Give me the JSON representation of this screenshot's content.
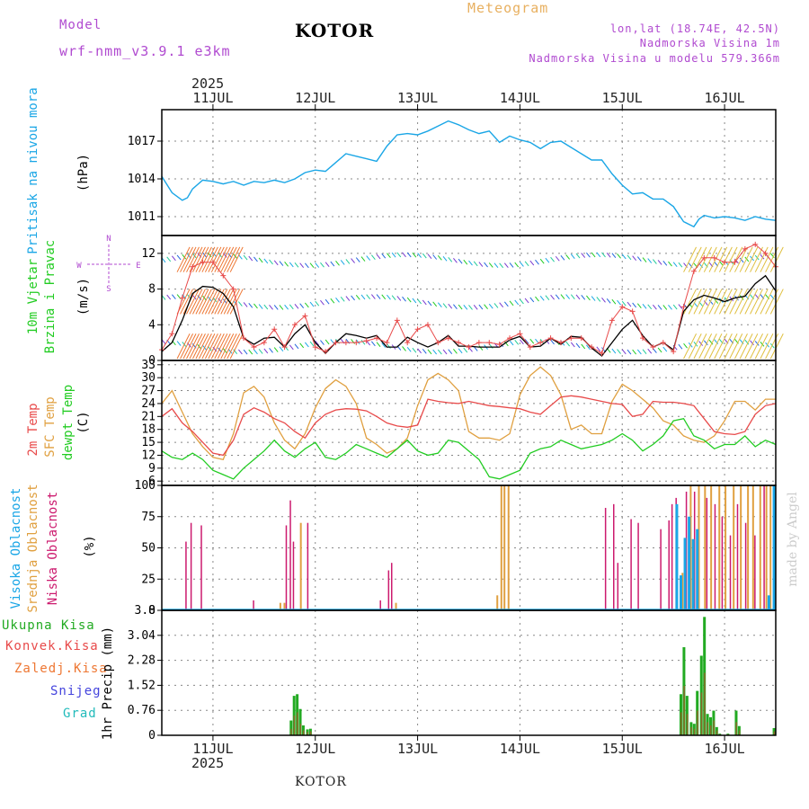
{
  "header": {
    "model_label": "Model",
    "model_name": "wrf-nmm_v3.9.1 e3km",
    "station": "KOTOR",
    "product": "Meteogram",
    "lonlat": "lon,lat (18.74E, 42.5N)",
    "elevation": "Nadmorska Visina 1m",
    "model_elevation": "Nadmorska Visina u modelu 579.366m",
    "year": "2025",
    "footer_station": "KOTOR",
    "watermark": "made by Angel"
  },
  "colors": {
    "pressure": "#1aa6e6",
    "temp2m": "#e84a4a",
    "sfc_temp": "#e0a040",
    "dewpt": "#22cc22",
    "wind_speed": "#000000",
    "gust": "#e84a4a",
    "high_cloud": "#1aa6e6",
    "mid_cloud": "#e0a040",
    "low_cloud": "#cc1a6e",
    "total_precip": "#22aa22",
    "conv_precip": "#e84a4a",
    "freezing": "#ee7733",
    "snow": "#4444dd",
    "hail": "#22bbbb",
    "header_purple": "#b04ad0",
    "header_orange": "#e8b060"
  },
  "chart_data": [
    {
      "type": "line",
      "panel": "pressure",
      "title": "Pritisak na nivou mora",
      "ylabel": "(hPa)",
      "ylim": [
        1009.5,
        1019.5
      ],
      "yticks": [
        "1011",
        "1014",
        "1017"
      ],
      "ytick_values": [
        1011,
        1014,
        1017
      ],
      "xlim": [
        10.5,
        16.5
      ],
      "x": [
        10.5,
        10.6,
        10.7,
        10.75,
        10.8,
        10.9,
        11.0,
        11.1,
        11.2,
        11.3,
        11.4,
        11.5,
        11.6,
        11.7,
        11.8,
        11.9,
        12.0,
        12.1,
        12.2,
        12.3,
        12.4,
        12.5,
        12.6,
        12.7,
        12.8,
        12.9,
        13.0,
        13.1,
        13.2,
        13.3,
        13.4,
        13.5,
        13.6,
        13.7,
        13.8,
        13.9,
        14.0,
        14.1,
        14.2,
        14.3,
        14.4,
        14.5,
        14.6,
        14.7,
        14.8,
        14.9,
        15.0,
        15.1,
        15.2,
        15.3,
        15.4,
        15.5,
        15.6,
        15.7,
        15.75,
        15.8,
        15.9,
        16.0,
        16.1,
        16.2,
        16.3,
        16.4,
        16.5
      ],
      "values": [
        1014.2,
        1012.9,
        1012.3,
        1012.5,
        1013.2,
        1013.9,
        1013.8,
        1013.6,
        1013.8,
        1013.5,
        1013.8,
        1013.7,
        1013.9,
        1013.7,
        1014.0,
        1014.5,
        1014.7,
        1014.6,
        1015.3,
        1016.0,
        1015.8,
        1015.6,
        1015.4,
        1016.6,
        1017.5,
        1017.6,
        1017.5,
        1017.8,
        1018.2,
        1018.6,
        1018.3,
        1017.9,
        1017.6,
        1017.8,
        1016.9,
        1017.4,
        1017.1,
        1016.9,
        1016.4,
        1016.9,
        1017.0,
        1016.5,
        1016.0,
        1015.5,
        1015.5,
        1014.4,
        1013.5,
        1012.8,
        1012.9,
        1012.4,
        1012.4,
        1011.8,
        1010.6,
        1010.2,
        1010.8,
        1011.1,
        1010.9,
        1011.0,
        1010.9,
        1010.7,
        1011.0,
        1010.8,
        1010.7
      ]
    },
    {
      "type": "line",
      "panel": "wind",
      "title": "10m Vjetar",
      "subtitle": "Brzina i Pravac",
      "ylabel": "(m/s)",
      "ylim": [
        0,
        14
      ],
      "yticks": [
        "0",
        "4",
        "8",
        "12"
      ],
      "ytick_values": [
        0,
        4,
        8,
        12
      ],
      "compass": [
        "N",
        "W",
        "E",
        "S"
      ],
      "series": [
        {
          "name": "10m wind speed",
          "x": [
            10.5,
            10.6,
            10.7,
            10.8,
            10.9,
            11.0,
            11.1,
            11.2,
            11.3,
            11.4,
            11.5,
            11.6,
            11.7,
            11.8,
            11.9,
            12.0,
            12.1,
            12.2,
            12.3,
            12.4,
            12.5,
            12.6,
            12.7,
            12.8,
            12.9,
            13.0,
            13.1,
            13.2,
            13.3,
            13.4,
            13.5,
            13.6,
            13.7,
            13.8,
            13.9,
            14.0,
            14.1,
            14.2,
            14.3,
            14.4,
            14.5,
            14.6,
            14.7,
            14.8,
            14.9,
            15.0,
            15.1,
            15.2,
            15.3,
            15.4,
            15.5,
            15.6,
            15.7,
            15.8,
            15.9,
            16.0,
            16.1,
            16.2,
            16.3,
            16.4,
            16.5
          ],
          "values": [
            1.0,
            2.0,
            4.5,
            7.5,
            8.3,
            8.2,
            7.5,
            6.0,
            2.5,
            1.8,
            2.5,
            2.6,
            1.5,
            3.0,
            4.0,
            2.0,
            0.8,
            2.0,
            3.0,
            2.8,
            2.5,
            2.8,
            1.5,
            1.5,
            2.6,
            2.0,
            1.5,
            2.0,
            2.8,
            1.6,
            1.6,
            1.5,
            1.5,
            1.5,
            2.3,
            2.7,
            1.5,
            1.6,
            2.5,
            1.8,
            2.7,
            2.6,
            1.4,
            0.5,
            2.0,
            3.5,
            4.5,
            2.8,
            1.5,
            2.0,
            1.2,
            5.5,
            6.8,
            7.3,
            7.0,
            6.6,
            7.0,
            7.2,
            8.6,
            9.5,
            7.8
          ]
        },
        {
          "name": "Gust",
          "x": [
            10.5,
            10.6,
            10.7,
            10.8,
            10.9,
            11.0,
            11.1,
            11.2,
            11.3,
            11.4,
            11.5,
            11.6,
            11.7,
            11.8,
            11.9,
            12.0,
            12.1,
            12.2,
            12.3,
            12.4,
            12.5,
            12.6,
            12.7,
            12.8,
            12.9,
            13.0,
            13.1,
            13.2,
            13.3,
            13.4,
            13.5,
            13.6,
            13.7,
            13.8,
            13.9,
            14.0,
            14.1,
            14.2,
            14.3,
            14.4,
            14.5,
            14.6,
            14.7,
            14.8,
            14.9,
            15.0,
            15.1,
            15.2,
            15.3,
            15.4,
            15.5,
            15.6,
            15.7,
            15.8,
            15.9,
            16.0,
            16.1,
            16.2,
            16.3,
            16.4,
            16.5
          ],
          "values": [
            1.2,
            3.0,
            7.0,
            10.5,
            11.0,
            11.0,
            9.5,
            8.0,
            2.5,
            1.5,
            2.0,
            3.5,
            1.5,
            4.0,
            5.0,
            1.5,
            1.0,
            2.0,
            2.0,
            2.0,
            2.2,
            2.5,
            2.0,
            4.5,
            2.0,
            3.5,
            4.0,
            2.0,
            2.5,
            2.0,
            1.5,
            2.0,
            2.0,
            1.8,
            2.5,
            3.0,
            1.5,
            2.0,
            2.5,
            2.0,
            2.5,
            2.5,
            1.5,
            0.8,
            4.5,
            6.0,
            5.5,
            2.5,
            1.5,
            2.0,
            1.0,
            6.0,
            10.0,
            11.5,
            11.5,
            11.0,
            11.0,
            12.5,
            13.0,
            12.0,
            10.5
          ]
        }
      ]
    },
    {
      "type": "line",
      "panel": "temperature",
      "title": "2m Temp",
      "subtitle": "SFC Temp",
      "subtitle2": "dewpt Temp",
      "ylabel": "(C)",
      "ylim": [
        5,
        34
      ],
      "yticks": [
        "6",
        "9",
        "12",
        "15",
        "18",
        "21",
        "24",
        "27",
        "30",
        "33"
      ],
      "ytick_values": [
        6,
        9,
        12,
        15,
        18,
        21,
        24,
        27,
        30,
        33
      ],
      "x": [
        10.5,
        10.6,
        10.7,
        10.8,
        10.9,
        11.0,
        11.1,
        11.2,
        11.3,
        11.4,
        11.5,
        11.6,
        11.7,
        11.8,
        11.9,
        12.0,
        12.1,
        12.2,
        12.3,
        12.4,
        12.5,
        12.6,
        12.7,
        12.8,
        12.9,
        13.0,
        13.1,
        13.2,
        13.3,
        13.4,
        13.5,
        13.6,
        13.7,
        13.8,
        13.9,
        14.0,
        14.1,
        14.2,
        14.3,
        14.4,
        14.5,
        14.6,
        14.7,
        14.8,
        14.9,
        15.0,
        15.1,
        15.2,
        15.3,
        15.4,
        15.5,
        15.6,
        15.7,
        15.8,
        15.9,
        16.0,
        16.1,
        16.2,
        16.3,
        16.4,
        16.5
      ],
      "series": [
        {
          "name": "2m Temp",
          "values": [
            21.0,
            22.8,
            19.5,
            17.5,
            15.0,
            12.5,
            12.0,
            15.5,
            21.5,
            23.0,
            22.0,
            20.5,
            19.5,
            17.5,
            16.0,
            19.5,
            21.5,
            22.5,
            22.8,
            22.7,
            22.3,
            21.0,
            19.5,
            18.8,
            18.5,
            19.0,
            25.0,
            24.5,
            24.2,
            24.0,
            24.5,
            24.0,
            23.5,
            23.3,
            23.0,
            22.8,
            22.0,
            21.5,
            23.5,
            25.5,
            25.8,
            25.5,
            25.0,
            24.5,
            24.0,
            23.8,
            21.0,
            21.5,
            24.5,
            24.3,
            24.3,
            24.0,
            23.5,
            20.5,
            17.5,
            17.0,
            16.8,
            17.5,
            21.5,
            23.5,
            24.0
          ]
        },
        {
          "name": "SFC Temp",
          "values": [
            24.0,
            27.0,
            22.0,
            17.0,
            14.0,
            11.5,
            11.0,
            17.0,
            26.5,
            28.0,
            25.5,
            19.5,
            15.5,
            13.5,
            17.0,
            23.0,
            27.5,
            29.5,
            28.0,
            24.0,
            16.0,
            14.5,
            12.5,
            13.5,
            16.0,
            23.5,
            29.5,
            31.0,
            29.5,
            27.0,
            17.5,
            16.0,
            16.0,
            15.5,
            17.0,
            26.0,
            30.5,
            32.5,
            30.5,
            26.0,
            18.0,
            19.0,
            17.0,
            17.0,
            24.5,
            28.5,
            27.0,
            25.0,
            23.0,
            20.0,
            19.0,
            16.5,
            15.5,
            15.0,
            16.5,
            20.0,
            24.5,
            24.5,
            22.5,
            25.0,
            25.0
          ]
        },
        {
          "name": "dewpt Temp",
          "values": [
            13.0,
            11.5,
            11.0,
            12.5,
            11.0,
            8.5,
            7.5,
            6.5,
            9.0,
            11.0,
            13.0,
            15.5,
            13.0,
            11.5,
            13.5,
            15.0,
            11.5,
            11.0,
            12.5,
            14.5,
            13.5,
            12.5,
            11.5,
            13.5,
            15.5,
            13.0,
            12.0,
            12.5,
            15.5,
            15.0,
            13.0,
            11.0,
            7.0,
            6.5,
            7.5,
            8.5,
            12.5,
            13.5,
            14.0,
            15.5,
            14.5,
            13.5,
            14.0,
            14.5,
            15.5,
            17.0,
            15.5,
            13.0,
            14.5,
            16.5,
            20.0,
            20.5,
            16.5,
            15.5,
            13.5,
            14.5,
            14.5,
            16.5,
            14.0,
            15.5,
            14.5
          ]
        }
      ]
    },
    {
      "type": "bar",
      "panel": "clouds",
      "title": "Visoka Oblacnost",
      "subtitle": "Srednja Oblacnost",
      "subtitle2": "Niska Oblacnost",
      "ylabel": "(%)",
      "ylim": [
        0,
        100
      ],
      "yticks": [
        "0",
        "25",
        "50",
        "75",
        "100"
      ],
      "ytick_values": [
        0,
        25,
        50,
        75,
        100
      ],
      "series": [
        {
          "name": "Niska Oblacnost",
          "x": [
            10.73,
            10.78,
            10.88,
            11.39,
            11.71,
            11.75,
            11.78,
            11.92,
            12.63,
            12.71,
            12.74,
            14.83,
            14.91,
            14.95,
            15.08,
            15.15,
            15.37,
            15.45,
            15.48,
            15.52,
            15.62,
            15.7,
            15.82,
            15.9,
            15.97,
            16.05,
            16.12,
            16.2,
            16.29,
            16.38
          ],
          "values": [
            55,
            70,
            68,
            8,
            68,
            88,
            55,
            70,
            8,
            32,
            38,
            82,
            85,
            38,
            73,
            70,
            65,
            72,
            85,
            90,
            95,
            95,
            90,
            85,
            75,
            60,
            85,
            70,
            60,
            100
          ]
        },
        {
          "name": "Srednja Oblacnost",
          "x": [
            11.65,
            11.69,
            11.85,
            12.78,
            13.77,
            13.81,
            13.84,
            13.88,
            15.58,
            15.66,
            15.74,
            15.8,
            15.86,
            15.94,
            16.0,
            16.08,
            16.15,
            16.22,
            16.27,
            16.34,
            16.4,
            16.44,
            16.48
          ],
          "values": [
            6,
            6,
            70,
            6,
            12,
            100,
            100,
            100,
            30,
            100,
            100,
            100,
            100,
            100,
            100,
            100,
            100,
            100,
            100,
            100,
            100,
            100,
            100
          ]
        },
        {
          "name": "Visoka Oblacnost",
          "x": [
            15.52,
            15.56,
            15.6,
            15.64,
            15.68,
            15.72,
            16.42,
            16.47
          ],
          "values": [
            85,
            28,
            58,
            75,
            57,
            65,
            12,
            100
          ]
        }
      ]
    },
    {
      "type": "bar",
      "panel": "precip",
      "ylabel": "1hr Precip (mm)",
      "legend": [
        "Ukupna Kisa",
        "Konvek.Kisa",
        "Zaledj.Kisa",
        "Snijeg",
        "Grad"
      ],
      "ylim": [
        0,
        3.8
      ],
      "yticks": [
        "0",
        "0.76",
        "1.52",
        "2.28",
        "3.04",
        "3.8"
      ],
      "ytick_values": [
        0,
        0.76,
        1.52,
        2.28,
        3.04,
        3.8
      ],
      "series": [
        {
          "name": "Ukupna Kisa",
          "x": [
            11.75,
            11.78,
            11.81,
            11.84,
            11.87,
            11.91,
            11.94,
            15.56,
            15.59,
            15.62,
            15.66,
            15.69,
            15.72,
            15.76,
            15.79,
            15.82,
            15.85,
            15.88,
            15.91,
            15.94,
            16.02,
            16.1,
            16.13,
            16.47
          ],
          "values": [
            0.45,
            1.2,
            1.25,
            0.8,
            0.3,
            0.18,
            0.2,
            1.25,
            2.68,
            1.2,
            0.4,
            0.35,
            1.35,
            2.42,
            3.6,
            0.65,
            0.55,
            0.75,
            0.25,
            0.05,
            0.05,
            0.75,
            0.28,
            0.22
          ]
        },
        {
          "name": "Konvek.Kisa",
          "x": [
            11.75,
            11.78,
            11.81,
            11.84,
            11.87,
            11.91,
            11.94,
            15.56,
            15.59,
            15.62,
            15.66,
            15.69,
            15.72,
            15.76,
            15.79,
            15.82,
            15.85,
            15.88,
            15.91,
            15.94,
            16.02,
            16.1,
            16.13,
            16.47
          ],
          "values": [
            0.2,
            0.6,
            0.7,
            0.35,
            0.15,
            0.1,
            0.12,
            0.7,
            1.5,
            0.65,
            0.25,
            0.2,
            0.75,
            1.3,
            1.9,
            0.4,
            0.3,
            0.45,
            0.15,
            0.03,
            0.03,
            0.4,
            0.15,
            0.12
          ]
        }
      ]
    }
  ],
  "panel_labels": {
    "wind_line1": "10m Vjetar",
    "wind_line2": "Brzina i Pravac",
    "temp_line1": "2m Temp",
    "temp_line2": "SFC Temp",
    "temp_line3": "dewpt Temp",
    "cloud_line1": "Visoka Oblacnost",
    "cloud_line2": "Srednja Oblacnost",
    "cloud_line3": "Niska Oblacnost",
    "pressure_unit": "(hPa)",
    "wind_unit": "(m/s)",
    "temp_unit": "(C)",
    "cloud_unit": "(%)",
    "precip_unit": "1hr Precip (mm)",
    "legend_total": "Ukupna Kisa",
    "legend_conv": "Konvek.Kisa",
    "legend_frz": "Zaledj.Kisa",
    "legend_snow": "Snijeg",
    "legend_hail": "Grad"
  },
  "x_axis": {
    "labels": [
      "11JUL",
      "12JUL",
      "13JUL",
      "14JUL",
      "15JUL",
      "16JUL"
    ],
    "values": [
      11,
      12,
      13,
      14,
      15,
      16
    ]
  }
}
